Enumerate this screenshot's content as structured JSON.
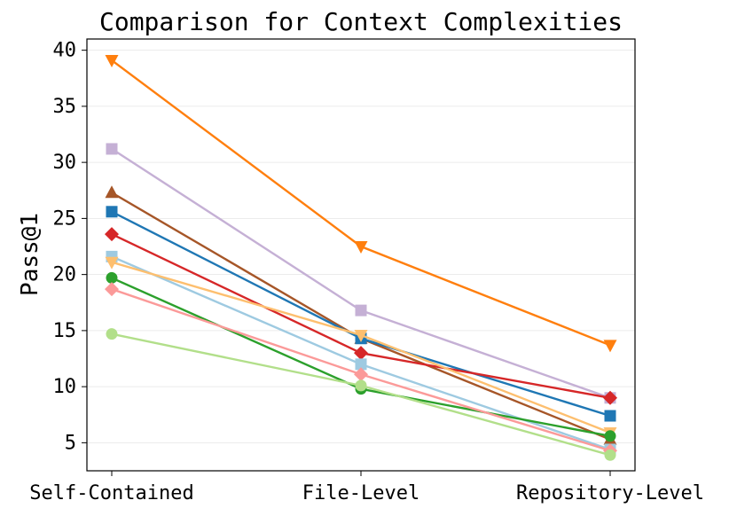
{
  "chart_data": {
    "type": "line",
    "title": "Comparison for Context Complexities",
    "xlabel": "",
    "ylabel": "Pass@1",
    "categories": [
      "Self-Contained",
      "File-Level",
      "Repository-Level"
    ],
    "ylim": [
      2.5,
      41
    ],
    "yticks": [
      5,
      10,
      15,
      20,
      25,
      30,
      35,
      40
    ],
    "grid": "horizontal",
    "legend": "none",
    "series": [
      {
        "values": [
          39.1,
          22.5,
          13.7
        ],
        "color": "#ff7f0e",
        "marker": "triangle-down"
      },
      {
        "values": [
          31.2,
          16.8,
          9.0
        ],
        "color": "#c5b0d5",
        "marker": "square"
      },
      {
        "values": [
          27.3,
          14.3,
          5.3
        ],
        "color": "#a65628",
        "marker": "triangle-up"
      },
      {
        "values": [
          25.6,
          14.3,
          7.4
        ],
        "color": "#1f77b4",
        "marker": "square"
      },
      {
        "values": [
          23.6,
          13.0,
          9.0
        ],
        "color": "#d62728",
        "marker": "diamond"
      },
      {
        "values": [
          21.6,
          12.0,
          4.4
        ],
        "color": "#9ecae1",
        "marker": "square"
      },
      {
        "values": [
          21.1,
          14.6,
          5.9
        ],
        "color": "#fdbf6f",
        "marker": "triangle-down"
      },
      {
        "values": [
          19.7,
          9.8,
          5.6
        ],
        "color": "#2ca02c",
        "marker": "circle"
      },
      {
        "values": [
          18.7,
          11.1,
          4.3
        ],
        "color": "#fb9a99",
        "marker": "diamond"
      },
      {
        "values": [
          14.7,
          10.1,
          3.9
        ],
        "color": "#b2df8a",
        "marker": "circle"
      }
    ]
  }
}
